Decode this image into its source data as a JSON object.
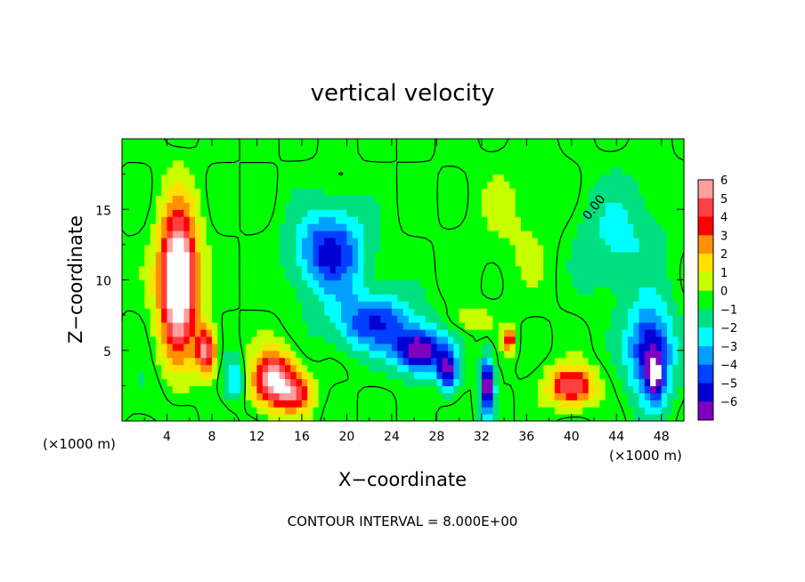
{
  "chart_data": {
    "type": "heatmap",
    "title": "vertical velocity",
    "xlabel": "X−coordinate",
    "ylabel": "Z−coordinate",
    "x_unit_left": "(×1000 m)",
    "x_unit_right": "(×1000 m)",
    "xlim": [
      0,
      50
    ],
    "ylim": [
      0,
      20
    ],
    "x_ticks": [
      4,
      8,
      12,
      16,
      20,
      24,
      28,
      32,
      36,
      40,
      44,
      48
    ],
    "x_tick_labels": [
      "4",
      "8",
      "12",
      "16",
      "20",
      "24",
      "28",
      "32",
      "36",
      "40",
      "44",
      "48"
    ],
    "y_ticks": [
      5,
      10,
      15
    ],
    "y_tick_labels": [
      "5",
      "10",
      "15"
    ],
    "colorbar": {
      "levels": [
        6,
        5,
        4,
        3,
        2,
        1,
        0,
        -1,
        -2,
        -3,
        -4,
        -5,
        -6
      ],
      "labels": [
        "6",
        "5",
        "4",
        "3",
        "2",
        "1",
        "0",
        "−1",
        "−2",
        "−3",
        "−4",
        "−5",
        "−6"
      ],
      "colors": [
        "#ff9f9f",
        "#ff4040",
        "#ff0000",
        "#ff9000",
        "#ffe000",
        "#c8ff00",
        "#00ff00",
        "#00e080",
        "#00ffff",
        "#00a0ff",
        "#0040ff",
        "#0000d0",
        "#8000c0"
      ],
      "placement": "right"
    },
    "contour_label": "0.00",
    "annotation": "CONTOUR INTERVAL = 8.000E+00",
    "features": [
      {
        "x": 5.0,
        "z": 10.0,
        "sx": 1.6,
        "sz": 4.8,
        "amp": 10
      },
      {
        "x": 7.5,
        "z": 5.0,
        "sx": 0.9,
        "sz": 1.6,
        "amp": 6
      },
      {
        "x": 13.5,
        "z": 3.0,
        "sx": 1.8,
        "sz": 1.9,
        "amp": 7
      },
      {
        "x": 15.5,
        "z": 2.0,
        "sx": 1.5,
        "sz": 1.3,
        "amp": 4
      },
      {
        "x": 18.5,
        "z": 12.0,
        "sx": 3.0,
        "sz": 3.0,
        "amp": -5
      },
      {
        "x": 22.5,
        "z": 7.0,
        "sx": 3.5,
        "sz": 2.0,
        "amp": -4.5
      },
      {
        "x": 26.5,
        "z": 5.0,
        "sx": 2.2,
        "sz": 1.5,
        "amp": -6.5
      },
      {
        "x": 29.0,
        "z": 3.6,
        "sx": 0.9,
        "sz": 1.4,
        "amp": -5.5
      },
      {
        "x": 32.5,
        "z": 2.5,
        "sx": 0.6,
        "sz": 2.0,
        "amp": -7
      },
      {
        "x": 34.5,
        "z": 5.8,
        "sx": 0.5,
        "sz": 0.9,
        "amp": 4.5
      },
      {
        "x": 31.0,
        "z": 7.2,
        "sx": 2.0,
        "sz": 0.8,
        "amp": 1.0
      },
      {
        "x": 40.0,
        "z": 2.5,
        "sx": 2.0,
        "sz": 1.3,
        "amp": 5.5
      },
      {
        "x": 47.0,
        "z": 5.0,
        "sx": 2.0,
        "sz": 3.2,
        "amp": -5.5
      },
      {
        "x": 47.5,
        "z": 3.0,
        "sx": 0.8,
        "sz": 1.8,
        "amp": -4
      },
      {
        "x": 44.0,
        "z": 13.0,
        "sx": 4.0,
        "sz": 4.0,
        "amp": -1.8
      },
      {
        "x": 10.0,
        "z": 3.0,
        "sx": 1.0,
        "sz": 1.5,
        "amp": -2.5
      },
      {
        "x": 2.0,
        "z": 2.0,
        "sx": 2.0,
        "sz": 2.0,
        "amp": -0.6
      },
      {
        "x": 36.0,
        "z": 14.0,
        "sx": 5.0,
        "sz": 5.0,
        "amp": 0.6
      }
    ]
  }
}
